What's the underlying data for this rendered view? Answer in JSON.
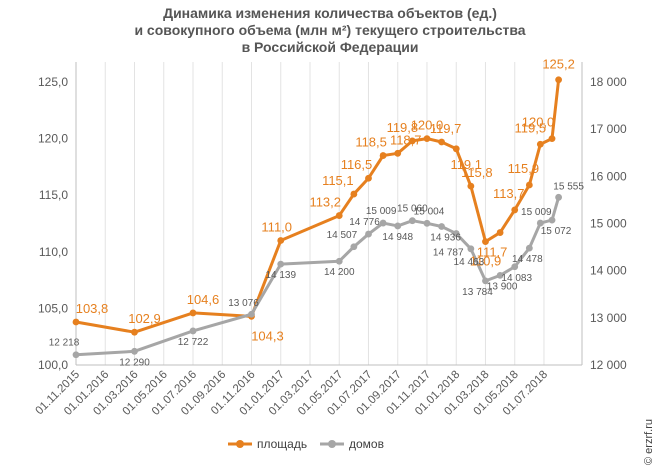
{
  "chart_data": {
    "type": "line",
    "title": [
      "Динамика изменения количества объектов (ед.)",
      "и совокупного объема (млн м²) текущего строительства",
      "в Российской Федерации"
    ],
    "x": [
      "01.11.2015",
      "01.01.2016",
      "01.03.2016",
      "01.05.2016",
      "01.07.2016",
      "01.09.2016",
      "01.11.2016",
      "01.01.2017",
      "01.03.2017",
      "01.05.2017",
      "01.06.2017",
      "01.07.2017",
      "01.08.2017",
      "01.09.2017",
      "01.10.2017",
      "01.11.2017",
      "01.12.2017",
      "01.01.2018",
      "01.02.2018",
      "01.03.2018",
      "01.04.2018",
      "01.05.2018",
      "01.06.2018",
      "01.07.2018",
      "01.08.2018"
    ],
    "x_tick_labels": [
      "01.11.2015",
      "01.01.2016",
      "01.03.2016",
      "01.05.2016",
      "01.07.2016",
      "01.09.2016",
      "01.11.2016",
      "01.01.2017",
      "01.03.2017",
      "01.05.2017",
      "01.07.2017",
      "01.09.2017",
      "01.11.2017",
      "01.01.2018",
      "01.03.2018",
      "01.05.2018",
      "01.07.2018"
    ],
    "y_left": {
      "lim": [
        100,
        125
      ],
      "ticks": [
        "100,0",
        "105,0",
        "110,0",
        "115,0",
        "120,0",
        "125,0"
      ]
    },
    "y_right": {
      "lim": [
        12000,
        18000
      ],
      "ticks": [
        "12 000",
        "13 000",
        "14 000",
        "15 000",
        "16 000",
        "17 000",
        "18 000"
      ]
    },
    "grid": "vertical",
    "legend_position": "bottom",
    "series": [
      {
        "name": "площадь",
        "axis": "left",
        "color": "#e6801f",
        "points": [
          {
            "x": "01.11.2015",
            "y": 103.8,
            "label": "103,8"
          },
          {
            "x": "01.03.2016",
            "y": 102.9,
            "label": "102,9"
          },
          {
            "x": "01.07.2016",
            "y": 104.6,
            "label": "104,6"
          },
          {
            "x": "01.11.2016",
            "y": 104.3,
            "label": "104,3"
          },
          {
            "x": "01.01.2017",
            "y": 111.0,
            "label": "111,0"
          },
          {
            "x": "01.05.2017",
            "y": 113.2,
            "label": "113,2"
          },
          {
            "x": "01.06.2017",
            "y": 115.1,
            "label": "115,1"
          },
          {
            "x": "01.07.2017",
            "y": 116.5,
            "label": "116,5"
          },
          {
            "x": "01.08.2017",
            "y": 118.5,
            "label": "118,5"
          },
          {
            "x": "01.09.2017",
            "y": 118.7,
            "label": "118,7"
          },
          {
            "x": "01.10.2017",
            "y": 119.8,
            "label": "119,8"
          },
          {
            "x": "01.11.2017",
            "y": 120.0,
            "label": "120,0"
          },
          {
            "x": "01.12.2017",
            "y": 119.7,
            "label": "119,7"
          },
          {
            "x": "01.01.2018",
            "y": 119.1,
            "label": "119,1"
          },
          {
            "x": "01.02.2018",
            "y": 115.8,
            "label": "115,8"
          },
          {
            "x": "01.03.2018",
            "y": 110.9,
            "label": "110,9"
          },
          {
            "x": "01.04.2018",
            "y": 111.7,
            "label": "111,7"
          },
          {
            "x": "01.05.2018",
            "y": 113.7,
            "label": "113,7"
          },
          {
            "x": "01.06.2018",
            "y": 115.9,
            "label": "115,9"
          },
          {
            "x": "01.07.2018",
            "y": 119.5,
            "label": "119,5"
          },
          {
            "x": "01.07.2018",
            "y": 120.0,
            "label": "120,0"
          },
          {
            "x": "01.08.2018",
            "y": 125.2,
            "label": "125,2"
          }
        ]
      },
      {
        "name": "домов",
        "axis": "right",
        "color": "#a6a6a6",
        "points": [
          {
            "x": "01.11.2015",
            "y": 12218,
            "label": "12 218"
          },
          {
            "x": "01.03.2016",
            "y": 12290,
            "label": "12 290"
          },
          {
            "x": "01.07.2016",
            "y": 12722,
            "label": "12 722"
          },
          {
            "x": "01.11.2016",
            "y": 13076,
            "label": "13 076"
          },
          {
            "x": "01.01.2017",
            "y": 14139,
            "label": "14 139"
          },
          {
            "x": "01.05.2017",
            "y": 14200,
            "label": "14 200"
          },
          {
            "x": "01.06.2017",
            "y": 14507,
            "label": "14 507"
          },
          {
            "x": "01.07.2017",
            "y": 14776,
            "label": "14 776"
          },
          {
            "x": "01.08.2017",
            "y": 15009,
            "label": "15 009"
          },
          {
            "x": "01.09.2017",
            "y": 14948,
            "label": "14 948"
          },
          {
            "x": "01.10.2017",
            "y": 15060,
            "label": "15 060"
          },
          {
            "x": "01.11.2017",
            "y": 15004,
            "label": "15 004"
          },
          {
            "x": "01.12.2017",
            "y": 14936,
            "label": "14 936"
          },
          {
            "x": "01.01.2018",
            "y": 14787,
            "label": "14 787"
          },
          {
            "x": "01.02.2018",
            "y": 14463,
            "label": "14 463"
          },
          {
            "x": "01.03.2018",
            "y": 13784,
            "label": "13 784"
          },
          {
            "x": "01.04.2018",
            "y": 13900,
            "label": "13 900"
          },
          {
            "x": "01.05.2018",
            "y": 14083,
            "label": "14 083"
          },
          {
            "x": "01.06.2018",
            "y": 14478,
            "label": "14 478"
          },
          {
            "x": "01.07.2018",
            "y": 15009,
            "label": "15 009"
          },
          {
            "x": "01.07.2018",
            "y": 15072,
            "label": "15 072"
          },
          {
            "x": "01.08.2018",
            "y": 15555,
            "label": "15 555"
          }
        ]
      }
    ],
    "source_text": "© erzrf.ru"
  }
}
